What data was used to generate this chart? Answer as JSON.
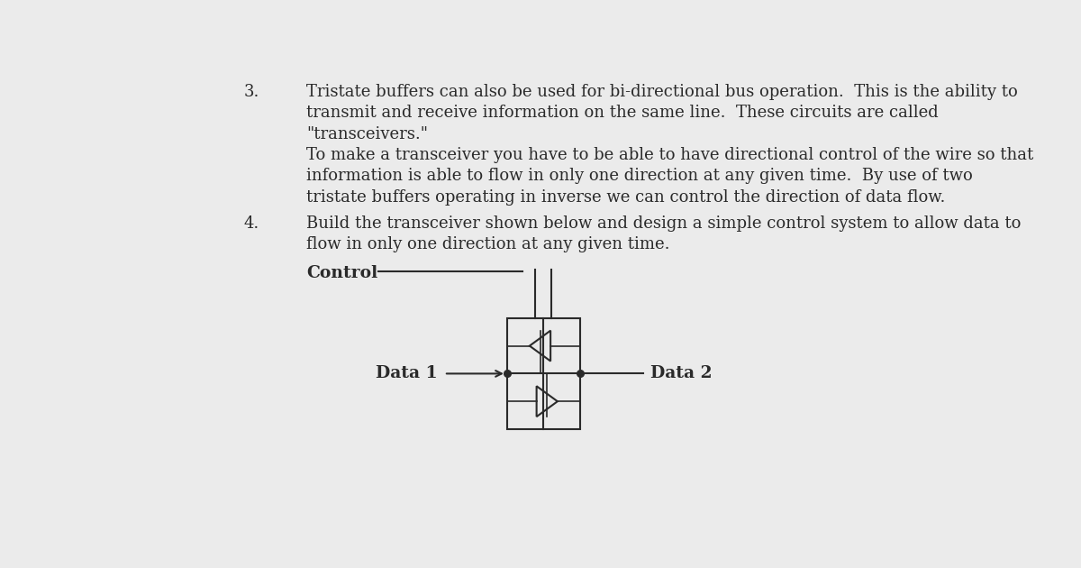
{
  "page_color": "#ebebeb",
  "text_color": "#2a2a2a",
  "item3_number": "3.",
  "item3_text_line1": "Tristate buffers can also be used for bi-directional bus operation.  This is the ability to",
  "item3_text_line2": "transmit and receive information on the same line.  These circuits are called",
  "item3_text_line3": "\"transceivers.\"",
  "item3_text_line4": "To make a transceiver you have to be able to have directional control of the wire so that",
  "item3_text_line5": "information is able to flow in only one direction at any given time.  By use of two",
  "item3_text_line6": "tristate buffers operating in inverse we can control the direction of data flow.",
  "item4_number": "4.",
  "item4_text_line1": "Build the transceiver shown below and design a simple control system to allow data to",
  "item4_text_line2": "flow in only one direction at any given time.",
  "control_label": "Control",
  "data1_label": "Data 1",
  "data2_label": "Data 2",
  "font_size_main": 13.0,
  "font_size_label": 13.5,
  "font_family": "DejaVu Serif"
}
